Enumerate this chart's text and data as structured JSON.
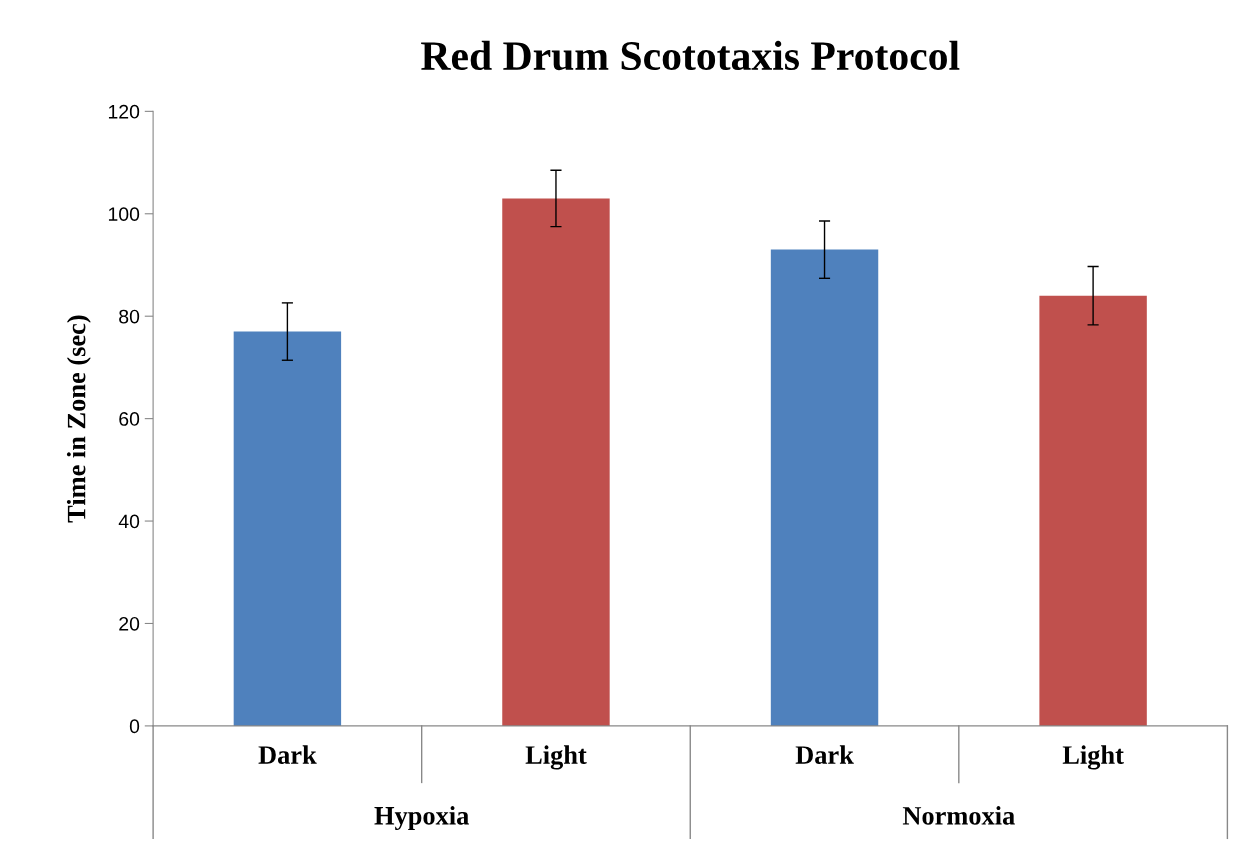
{
  "chart_data": {
    "type": "bar",
    "title": "Red Drum Scototaxis Protocol",
    "ylabel": "Time in Zone (sec)",
    "categories": [
      "Dark",
      "Light",
      "Dark",
      "Light"
    ],
    "values": [
      77,
      103,
      93,
      84
    ],
    "errors": [
      5.6,
      5.5,
      5.6,
      5.7
    ],
    "colors": [
      "#4f81bd",
      "#c0504d",
      "#4f81bd",
      "#c0504d"
    ],
    "annotations": [
      "Hypoxia",
      "Normoxia"
    ],
    "ylim": [
      0,
      120
    ],
    "yticks": [
      0,
      20,
      40,
      60,
      80,
      100,
      120
    ],
    "grid": false
  }
}
